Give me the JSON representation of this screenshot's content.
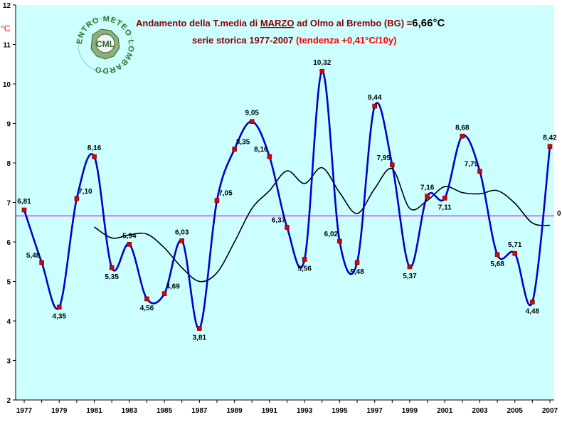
{
  "chart_data": {
    "type": "line",
    "title_prefix": "Andamento della T.media di ",
    "title_month": "MARZO",
    "title_middle": " ad Olmo al Brembo (BG) =",
    "title_value": "6,66°C",
    "subtitle_main": "serie storica 1977-2007 ",
    "subtitle_trend": "(tendenza +0,41°C/10y)",
    "ylabel": "°C",
    "logo_text": "CML",
    "logo_ring_text": "CENTRO METEO LOMBARDO",
    "mean_line_label": "0",
    "ylim": [
      2,
      12
    ],
    "xlim": [
      1977,
      2007
    ],
    "y_ticks": [
      "2",
      "3",
      "4",
      "5",
      "6",
      "7",
      "8",
      "9",
      "10",
      "11",
      "12"
    ],
    "x_ticks": [
      "1977",
      "1979",
      "1981",
      "1983",
      "1985",
      "1987",
      "1989",
      "1991",
      "1993",
      "1995",
      "1997",
      "1999",
      "2001",
      "2003",
      "2005",
      "2007"
    ],
    "mean_value": 6.66,
    "series": [
      {
        "x": [
          1977,
          1978,
          1979,
          1980,
          1981,
          1982,
          1983,
          1984,
          1985,
          1986,
          1987,
          1988,
          1989,
          1990,
          1991,
          1992,
          1993,
          1994,
          1995,
          1996,
          1997,
          1998,
          1999,
          2000,
          2001,
          2002,
          2003,
          2004,
          2005,
          2006,
          2007
        ],
        "values": [
          6.81,
          5.48,
          4.35,
          7.1,
          8.16,
          5.35,
          5.94,
          4.56,
          4.69,
          6.03,
          3.81,
          7.05,
          8.35,
          9.05,
          8.16,
          6.37,
          5.56,
          10.32,
          6.02,
          5.48,
          9.44,
          7.95,
          5.37,
          7.16,
          7.11,
          8.68,
          7.79,
          5.68,
          5.71,
          4.48,
          8.42
        ],
        "labels": [
          "6,81",
          "5,48",
          "4,35",
          "7,10",
          "8,16",
          "5,35",
          "5,94",
          "4,56",
          "4,69",
          "6,03",
          "3,81",
          "7,05",
          "8,35",
          "9,05",
          "8,16",
          "6,37",
          "5,56",
          "10,32",
          "6,02",
          "5,48",
          "9,44",
          "7,95",
          "5,37",
          "7,16",
          "7,11",
          "8,68",
          "7,79",
          "5,68",
          "5,71",
          "4,48",
          "8,42"
        ],
        "color": "#0000cc",
        "marker_color": "#dd0000"
      },
      {
        "x": [
          1981,
          1982,
          1983,
          1984,
          1985,
          1986,
          1987,
          1988,
          1989,
          1990,
          1991,
          1992,
          1993,
          1994,
          1995,
          1996,
          1997,
          1998,
          1999,
          2000,
          2001,
          2002,
          2003,
          2004,
          2005,
          2006,
          2007
        ],
        "values": [
          6.38,
          6.1,
          6.18,
          6.2,
          5.85,
          5.35,
          5.0,
          5.22,
          6.0,
          6.85,
          7.3,
          7.8,
          7.48,
          7.88,
          7.25,
          6.72,
          7.35,
          7.85,
          6.85,
          7.05,
          7.4,
          7.25,
          7.22,
          7.3,
          6.98,
          6.48,
          6.42
        ],
        "color": "#000000"
      }
    ],
    "colors": {
      "plot_bg": "#ccffff",
      "mean_line": "#ff00ff",
      "axis": "#000000"
    }
  }
}
